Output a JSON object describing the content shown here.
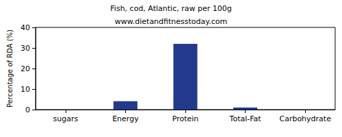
{
  "chart_data": {
    "type": "bar",
    "title": "Fish, cod, Atlantic, raw per 100g",
    "subtitle": "www.dietandfitnesstoday.com",
    "y_label": "Percentage of RDA (%)",
    "categories": [
      "sugars",
      "Energy",
      "Protein",
      "Total-Fat",
      "Carbohydrate"
    ],
    "values": [
      0,
      4.1,
      32,
      1,
      0
    ],
    "color": "#233a8c",
    "ylim": [
      0,
      40
    ],
    "yticks": [
      0,
      10,
      20,
      30,
      40
    ],
    "grid": false
  }
}
